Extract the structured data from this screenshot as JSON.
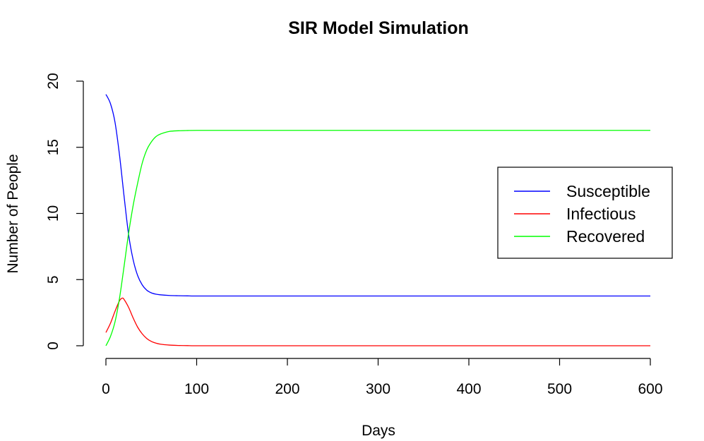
{
  "chart_data": {
    "type": "line",
    "title": "SIR Model Simulation",
    "xlabel": "Days",
    "ylabel": "Number of People",
    "xlim": [
      0,
      600
    ],
    "ylim": [
      0,
      20
    ],
    "xticks": [
      "0",
      "100",
      "200",
      "300",
      "400",
      "500",
      "600"
    ],
    "yticks": [
      "0",
      "5",
      "10",
      "15",
      "20"
    ],
    "grid": false,
    "legend_position": "right",
    "series": [
      {
        "name": "Susceptible",
        "color": "#0000ff",
        "x": [
          0,
          5,
          10,
          15,
          20,
          25,
          30,
          35,
          40,
          45,
          50,
          55,
          60,
          70,
          80,
          90,
          100,
          150,
          200,
          300,
          400,
          500,
          600
        ],
        "y": [
          19.0,
          18.3,
          16.9,
          14.4,
          11.3,
          8.4,
          6.5,
          5.3,
          4.6,
          4.2,
          4.0,
          3.9,
          3.85,
          3.8,
          3.78,
          3.77,
          3.76,
          3.76,
          3.76,
          3.76,
          3.76,
          3.76,
          3.76
        ]
      },
      {
        "name": "Infectious",
        "color": "#ff0000",
        "x": [
          0,
          5,
          10,
          15,
          18,
          20,
          25,
          30,
          35,
          40,
          45,
          50,
          55,
          60,
          70,
          80,
          90,
          100,
          150,
          200,
          300,
          400,
          500,
          600
        ],
        "y": [
          1.0,
          1.7,
          2.6,
          3.4,
          3.6,
          3.5,
          2.9,
          2.1,
          1.4,
          0.9,
          0.55,
          0.33,
          0.2,
          0.12,
          0.05,
          0.02,
          0.01,
          0.0,
          0.0,
          0.0,
          0.0,
          0.0,
          0.0,
          0.0
        ]
      },
      {
        "name": "Recovered",
        "color": "#00ff00",
        "x": [
          0,
          5,
          10,
          15,
          20,
          25,
          30,
          35,
          40,
          45,
          50,
          55,
          60,
          70,
          80,
          90,
          100,
          150,
          200,
          300,
          400,
          500,
          600
        ],
        "y": [
          0.0,
          0.7,
          1.8,
          3.6,
          6.0,
          8.5,
          10.6,
          12.3,
          13.8,
          14.8,
          15.4,
          15.8,
          16.0,
          16.2,
          16.25,
          16.27,
          16.28,
          16.28,
          16.28,
          16.28,
          16.28,
          16.28,
          16.28
        ]
      }
    ]
  }
}
